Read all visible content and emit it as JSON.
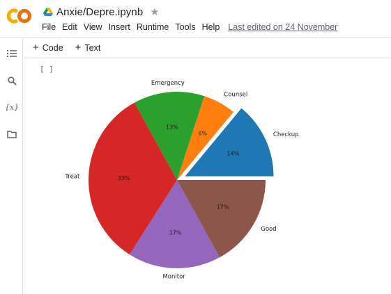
{
  "app": {
    "notebook_title": "Anxie/Depre.ipynb",
    "menu": [
      "File",
      "Edit",
      "View",
      "Insert",
      "Runtime",
      "Tools",
      "Help"
    ],
    "last_edited": "Last edited on 24 November"
  },
  "sidebar": {
    "icons": [
      "table-of-contents-icon",
      "search-icon",
      "variables-icon",
      "folder-icon"
    ],
    "variables_glyph": "{x}"
  },
  "toolbar": {
    "code_label": "Code",
    "text_label": "Text"
  },
  "cell": {
    "run_indicator": "[ ]"
  },
  "colors": {
    "brand_orange": "#f9ab00",
    "brand_dark_orange": "#e8710a"
  },
  "chart_data": {
    "type": "pie",
    "title": "",
    "start_angle": 0,
    "counterclockwise": true,
    "labels": [
      "Checkup",
      "Counsel",
      "Emergency",
      "Treat",
      "Monitor",
      "Good"
    ],
    "values": [
      14,
      6,
      13,
      33,
      17,
      17
    ],
    "percent_labels": [
      "14%",
      "6%",
      "13%",
      "33%",
      "17%",
      "17%"
    ],
    "colors": [
      "#1f77b4",
      "#ff7f0e",
      "#2ca02c",
      "#d62728",
      "#9467bd",
      "#8c564b"
    ],
    "explode": [
      0.1,
      0,
      0,
      0,
      0,
      0
    ]
  }
}
